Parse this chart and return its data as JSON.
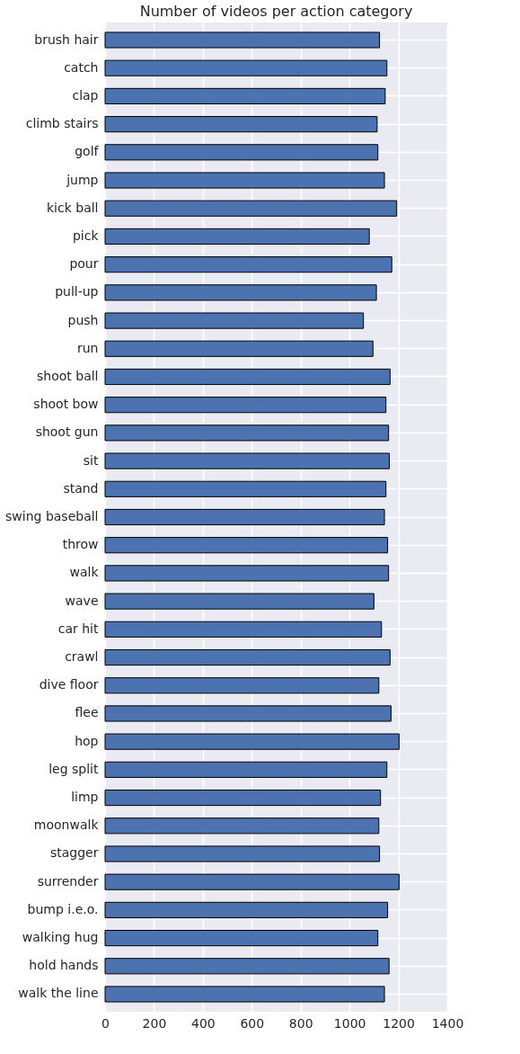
{
  "chart_data": {
    "type": "bar",
    "orientation": "horizontal",
    "title": "Number of videos per action category",
    "categories": [
      "brush hair",
      "catch",
      "clap",
      "climb stairs",
      "golf",
      "jump",
      "kick ball",
      "pick",
      "pour",
      "pull-up",
      "push",
      "run",
      "shoot ball",
      "shoot bow",
      "shoot gun",
      "sit",
      "stand",
      "swing baseball",
      "throw",
      "walk",
      "wave",
      "car hit",
      "crawl",
      "dive floor",
      "flee",
      "hop",
      "leg split",
      "limp",
      "moonwalk",
      "stagger",
      "surrender",
      "bump i.e.o.",
      "walking hug",
      "hold hands",
      "walk the line"
    ],
    "values": [
      1123,
      1153,
      1146,
      1113,
      1116,
      1143,
      1193,
      1081,
      1173,
      1110,
      1057,
      1096,
      1166,
      1149,
      1160,
      1163,
      1149,
      1143,
      1156,
      1160,
      1100,
      1131,
      1166,
      1120,
      1170,
      1203,
      1153,
      1127,
      1120,
      1123,
      1203,
      1156,
      1116,
      1162,
      1143
    ],
    "color": "#4c72b0",
    "xlim": [
      0,
      1400
    ],
    "xticks": [
      0,
      200,
      400,
      600,
      800,
      1000,
      1200,
      1400
    ],
    "grid": true
  }
}
